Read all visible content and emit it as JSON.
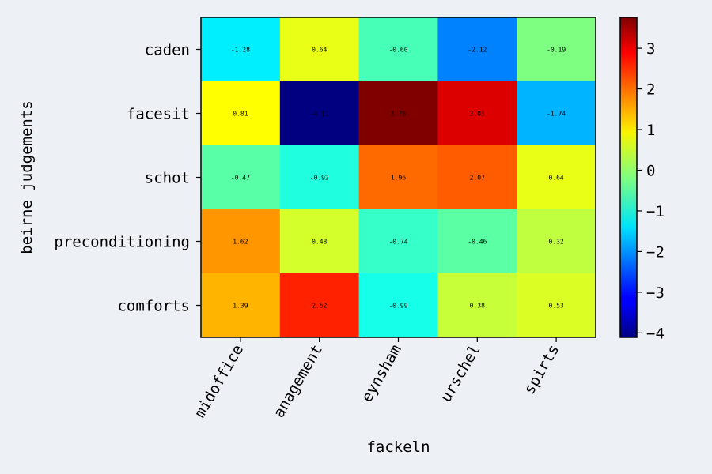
{
  "chart_data": {
    "type": "heatmap",
    "title": "",
    "xlabel": "fackeln",
    "ylabel": "beirne judgements",
    "x_categories": [
      "midoffice",
      "anagement",
      "eynsham",
      "urschel",
      "spirts"
    ],
    "y_categories": [
      "caden",
      "facesit",
      "schot",
      "preconditioning",
      "comforts"
    ],
    "values": [
      [
        -1.28,
        0.64,
        -0.6,
        -2.12,
        -0.19
      ],
      [
        0.81,
        -4.11,
        3.76,
        3.05,
        -1.74
      ],
      [
        -0.47,
        -0.92,
        1.96,
        2.07,
        0.64
      ],
      [
        1.62,
        0.48,
        -0.74,
        -0.46,
        0.32
      ],
      [
        1.39,
        2.52,
        -0.99,
        0.38,
        0.53
      ]
    ],
    "value_labels": [
      [
        "-1.28",
        "0.64",
        "-0.60",
        "-2.12",
        "-0.19"
      ],
      [
        "0.81",
        "-4.11",
        "3.76",
        "3.05",
        "-1.74"
      ],
      [
        "-0.47",
        "-0.92",
        "1.96",
        "2.07",
        "0.64"
      ],
      [
        "1.62",
        "0.48",
        "-0.74",
        "-0.46",
        "0.32"
      ],
      [
        "1.39",
        "2.52",
        "-0.99",
        "0.38",
        "0.53"
      ]
    ],
    "colormap": "jet",
    "colorbar": {
      "vmin": -4.11,
      "vmax": 3.76,
      "ticks": [
        3,
        2,
        1,
        0,
        -1,
        -2,
        -3,
        -4
      ],
      "tick_labels": [
        "3",
        "2",
        "1",
        "0",
        "−1",
        "−2",
        "−3",
        "−4"
      ]
    },
    "grid": false
  }
}
